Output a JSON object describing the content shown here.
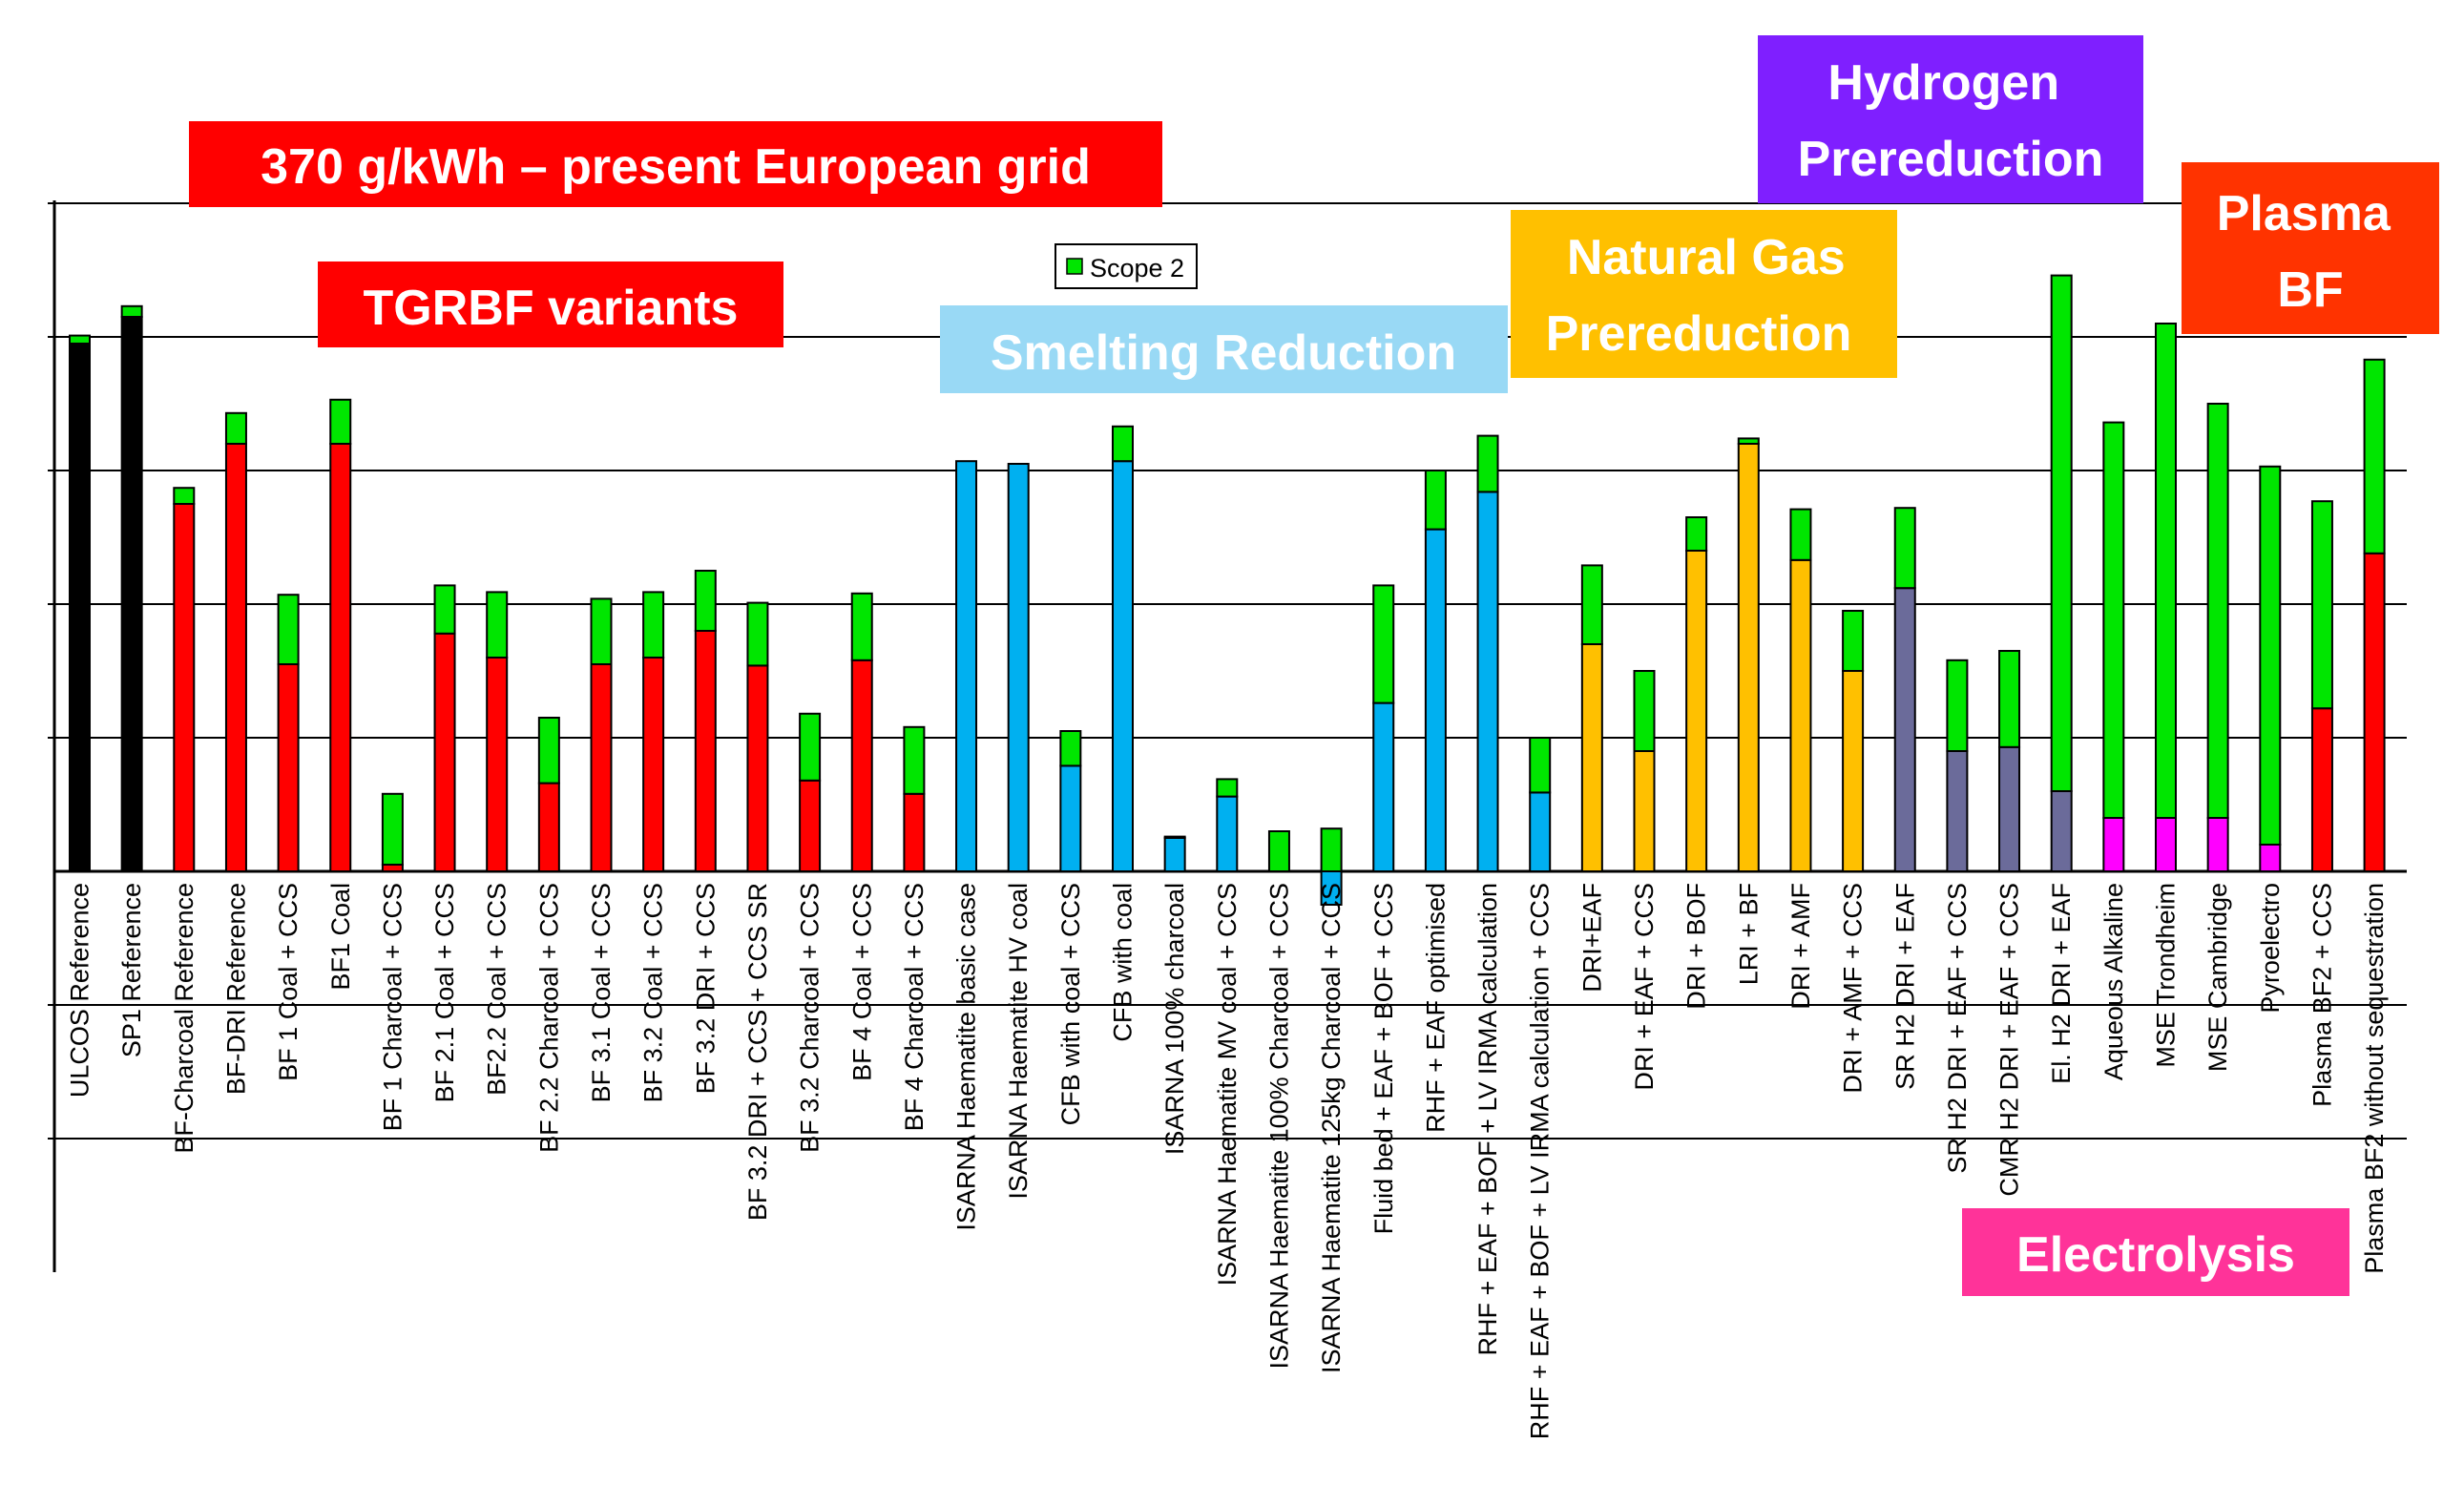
{
  "chart_data": {
    "type": "bar",
    "stacked": true,
    "title": "",
    "xlabel": "",
    "ylabel": "",
    "ylim": [
      0,
      5
    ],
    "grid": true,
    "y_axis_tick_labels": "none",
    "legend": {
      "position": "top-center",
      "entries": [
        {
          "name": "Scope 2",
          "color": "#00e600"
        }
      ]
    },
    "categories": [
      "ULCOS Reference",
      "SP1 Reference",
      "BF-Charcoal Reference",
      "BF-DRI Reference",
      "BF 1 Coal + CCS",
      "BF1 Coal",
      "BF 1 Charcoal + CCS",
      "BF 2.1 Coal + CCS",
      "BF2.2 Coal + CCS",
      "BF 2.2 Charcoal + CCS",
      "BF 3.1 Coal + CCS",
      "BF 3.2 Coal + CCS",
      "BF 3.2 DRI + CCS",
      "BF 3.2 DRI + CCS + CCS SR",
      "BF 3.2 Charcoal + CCS",
      "BF 4 Coal + CCS",
      "BF 4 Charcoal + CCS",
      "ISARNA Haematite basic case",
      "ISARNA Haematite HV coal",
      "CFB with coal + CCS",
      "CFB with coal",
      "ISARNA 100% charcoal",
      "ISARNA Haematite MV coal + CCS",
      "ISARNA Haematite 100% Charcoal + CCS",
      "ISARNA Haematite 125kg Charcoal + CCS",
      "Fluid bed + EAF + BOF + CCS",
      "RHF + EAF optimised",
      "RHF + EAF + BOF + LV IRMA calculation",
      "RHF + EAF + BOF + LV IRMA calculation + CCS",
      "DRI+EAF",
      "DRI + EAF + CCS",
      "DRI + BOF",
      "LRI + BF",
      "DRI + AMF",
      "DRI + AMF + CCS",
      "SR H2 DRI + EAF",
      "SR H2 DRI + EAF + CCS",
      "CMR H2 DRI + EAF + CCS",
      "El. H2 DRI + EAF",
      "Aqueous Alkaline",
      "MSE Trondheim",
      "MSE Cambridge",
      "Pyroelectro",
      "Plasma BF2 + CCS",
      "Plasma BF2 without sequestration"
    ],
    "series": [
      {
        "values": [
          3.95,
          4.15,
          2.75,
          3.2,
          1.55,
          3.2,
          0.05,
          1.78,
          1.6,
          0.66,
          1.55,
          1.6,
          1.8,
          1.54,
          0.68,
          1.58,
          0.58,
          3.07,
          3.05,
          0.79,
          3.07,
          0.25,
          0.56,
          0,
          -0.25,
          1.26,
          2.56,
          2.84,
          0.59,
          1.7,
          0.9,
          2.4,
          3.2,
          2.33,
          1.5,
          2.12,
          0.9,
          0.93,
          0.6,
          0.4,
          0.4,
          0.4,
          0.2,
          1.22,
          2.38
        ]
      },
      {
        "name": "Scope 2",
        "values": [
          0.06,
          0.08,
          0.12,
          0.23,
          0.52,
          0.33,
          0.53,
          0.36,
          0.49,
          0.49,
          0.49,
          0.49,
          0.45,
          0.47,
          0.5,
          0.5,
          0.5,
          0,
          0,
          0.26,
          0.26,
          0.01,
          0.13,
          0.3,
          0.32,
          0.88,
          0.44,
          0.42,
          0.41,
          0.59,
          0.6,
          0.25,
          0.04,
          0.38,
          0.45,
          0.6,
          0.68,
          0.72,
          3.86,
          2.96,
          3.7,
          3.1,
          2.83,
          1.55,
          1.45
        ]
      }
    ],
    "series_colors": [
      "#000000",
      "#000000",
      "#ff0000",
      "#ff0000",
      "#ff0000",
      "#ff0000",
      "#ff0000",
      "#ff0000",
      "#ff0000",
      "#ff0000",
      "#ff0000",
      "#ff0000",
      "#ff0000",
      "#ff0000",
      "#ff0000",
      "#ff0000",
      "#ff0000",
      "#00b0f0",
      "#00b0f0",
      "#00b0f0",
      "#00b0f0",
      "#00b0f0",
      "#00b0f0",
      "#00b0f0",
      "#00b0f0",
      "#00b0f0",
      "#00b0f0",
      "#00b0f0",
      "#00b0f0",
      "#ffc000",
      "#ffc000",
      "#ffc000",
      "#ffc000",
      "#ffc000",
      "#ffc000",
      "#6b6b9a",
      "#6b6b9a",
      "#6b6b9a",
      "#6b6b9a",
      "#ff00ff",
      "#ff00ff",
      "#ff00ff",
      "#ff00ff",
      "#ff0000",
      "#ff0000"
    ],
    "annotations": [
      {
        "text": "370 g/kWh – present European grid",
        "bg": "#ff0000",
        "fg": "#ffffff"
      },
      {
        "text": "TGRBF variants",
        "bg": "#ff0000",
        "fg": "#ffffff"
      },
      {
        "text": "Smelting Reduction",
        "bg": "#99d9f5",
        "fg": "#ffffff"
      },
      {
        "text": "Natural Gas Prereduction",
        "bg": "#ffc000",
        "fg": "#ffffff"
      },
      {
        "text": "Hydrogen Prereduction",
        "bg": "#7f1fff",
        "fg": "#ffffff"
      },
      {
        "text": "Plasma BF",
        "bg": "#ff3300",
        "fg": "#ffffff"
      },
      {
        "text": "Electrolysis",
        "bg": "#ff3399",
        "fg": "#ffffff"
      }
    ]
  }
}
